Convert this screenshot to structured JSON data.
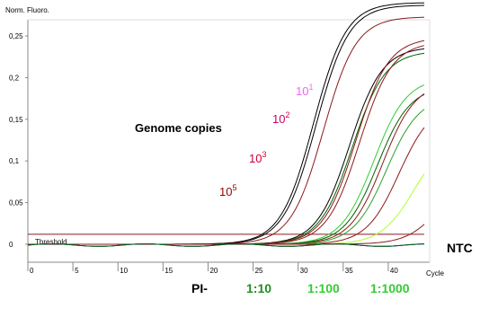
{
  "chart_data": {
    "type": "line",
    "title": "",
    "ylabel": "Norm. Fluoro.",
    "xlabel": "Cycle",
    "xlim": [
      0,
      44
    ],
    "ylim": [
      -0.02,
      0.3
    ],
    "grid": false,
    "x_ticks": [
      0,
      5,
      10,
      15,
      20,
      25,
      30,
      35,
      40
    ],
    "y_ticks": [
      0,
      0.05,
      0.1,
      0.15,
      0.2,
      0.25
    ],
    "y_tick_labels": [
      "0",
      "0,05",
      "0,1",
      "0,15",
      "0,2",
      "0,25"
    ],
    "threshold": {
      "label": "Threshold",
      "value": 0.012,
      "color": "#8b1a1a"
    },
    "annotations": {
      "genome_copies": "Genome copies",
      "dilutions": [
        {
          "base": "10",
          "exp": "1",
          "color": "#ee66ee"
        },
        {
          "base": "10",
          "exp": "2",
          "color": "#cc0066"
        },
        {
          "base": "10",
          "exp": "3",
          "color": "#cc0033"
        },
        {
          "base": "10",
          "exp": "5",
          "color": "#990000"
        }
      ],
      "ntc": "NTC"
    },
    "bottom_labels": [
      {
        "text": "PI-",
        "color": "#000000"
      },
      {
        "text": "1:10",
        "color": "#228b22"
      },
      {
        "text": "1:100",
        "color": "#33cc33"
      },
      {
        "text": "1:1000",
        "color": "#33cc33"
      }
    ],
    "series": [
      {
        "color": "#000000",
        "ct": 27.5,
        "plateau": 0.29
      },
      {
        "color": "#000000",
        "ct": 27.8,
        "plateau": 0.287
      },
      {
        "color": "#8b1a1a",
        "ct": 28.6,
        "plateau": 0.273
      },
      {
        "color": "#000000",
        "ct": 31.5,
        "plateau": 0.237
      },
      {
        "color": "#006400",
        "ct": 31.8,
        "plateau": 0.232
      },
      {
        "color": "#8b1a1a",
        "ct": 32.2,
        "plateau": 0.248
      },
      {
        "color": "#8b1a1a",
        "ct": 32.6,
        "plateau": 0.243
      },
      {
        "color": "#33cc33",
        "ct": 34.2,
        "plateau": 0.2
      },
      {
        "color": "#006400",
        "ct": 34.6,
        "plateau": 0.19
      },
      {
        "color": "#8b1a1a",
        "ct": 35.2,
        "plateau": 0.195
      },
      {
        "color": "#2ca02c",
        "ct": 35.6,
        "plateau": 0.178
      },
      {
        "color": "#8b1a1a",
        "ct": 37.0,
        "plateau": 0.17
      },
      {
        "color": "#adff2f",
        "ct": 38.6,
        "plateau": 0.128
      },
      {
        "color": "#8b1a1a",
        "ct": 41.5,
        "plateau": 0.085
      },
      {
        "color": "#0000cc",
        "ct": null,
        "plateau": 0
      },
      {
        "color": "#006400",
        "ct": null,
        "plateau": 0
      }
    ]
  }
}
